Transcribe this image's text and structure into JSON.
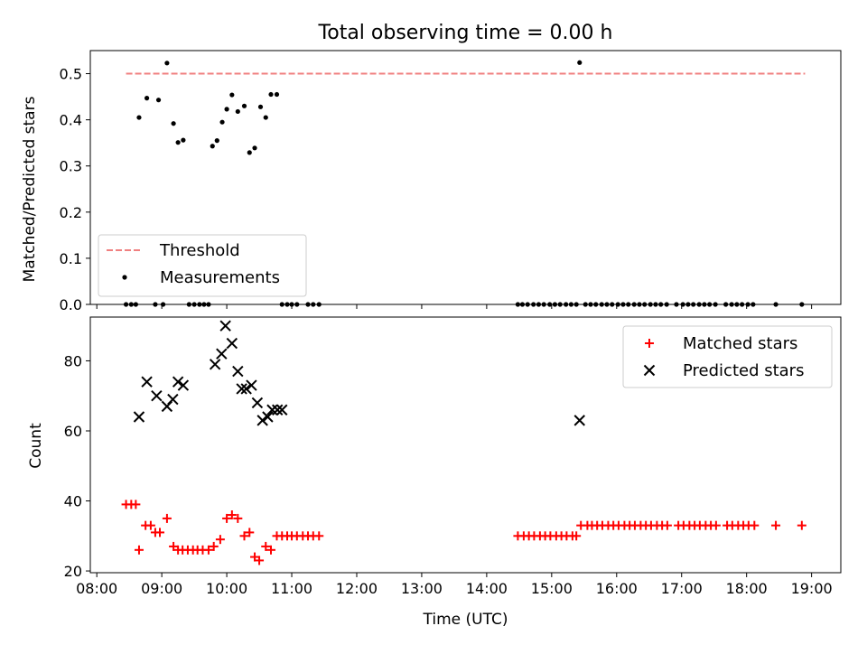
{
  "chart_data": [
    {
      "type": "scatter",
      "title": "Total observing time = 0.00 h",
      "xlabel": "",
      "ylabel": "Matched/Predicted stars",
      "xlim_hours": [
        7.9,
        19.45
      ],
      "ylim": [
        0,
        0.55
      ],
      "yticks": [
        0.0,
        0.1,
        0.2,
        0.3,
        0.4,
        0.5
      ],
      "ytick_labels": [
        "0.0",
        "0.1",
        "0.2",
        "0.3",
        "0.4",
        "0.5"
      ],
      "threshold": {
        "name": "Threshold",
        "value": 0.5,
        "x_range": [
          8.45,
          18.9
        ],
        "color": "#f08080"
      },
      "legend": {
        "position": "lower-left",
        "entries": [
          "Threshold",
          "Measurements"
        ]
      },
      "series": [
        {
          "name": "Measurements",
          "color": "#000000",
          "x": [
            8.45,
            8.53,
            8.6,
            8.65,
            8.77,
            8.9,
            8.95,
            9.02,
            9.08,
            9.18,
            9.25,
            9.33,
            9.42,
            9.5,
            9.58,
            9.65,
            9.72,
            9.78,
            9.85,
            9.93,
            10.0,
            10.08,
            10.17,
            10.27,
            10.35,
            10.43,
            10.52,
            10.6,
            10.68,
            10.77,
            10.85,
            10.93,
            11.0,
            11.08,
            11.25,
            11.33,
            11.42,
            14.48,
            14.55,
            14.63,
            14.72,
            14.8,
            14.88,
            14.97,
            15.05,
            15.13,
            15.22,
            15.3,
            15.38,
            15.43,
            15.52,
            15.6,
            15.68,
            15.77,
            15.85,
            15.93,
            16.02,
            16.1,
            16.18,
            16.27,
            16.35,
            16.43,
            16.52,
            16.6,
            16.68,
            16.77,
            16.92,
            17.02,
            17.1,
            17.18,
            17.27,
            17.35,
            17.43,
            17.52,
            17.68,
            17.77,
            17.85,
            17.93,
            18.02,
            18.1,
            18.45,
            18.85
          ],
          "y": [
            0,
            0,
            0,
            0.405,
            0.447,
            0,
            0.443,
            0,
            0.523,
            0.392,
            0.351,
            0.356,
            0,
            0,
            0,
            0,
            0,
            0.343,
            0.355,
            0.395,
            0.423,
            0.454,
            0.418,
            0.43,
            0.329,
            0.339,
            0.428,
            0.405,
            0.455,
            0.455,
            0,
            0,
            0,
            0,
            0,
            0,
            0,
            0,
            0,
            0,
            0,
            0,
            0,
            0,
            0,
            0,
            0,
            0,
            0,
            0.524,
            0,
            0,
            0,
            0,
            0,
            0,
            0,
            0,
            0,
            0,
            0,
            0,
            0,
            0,
            0,
            0,
            0,
            0,
            0,
            0,
            0,
            0,
            0,
            0,
            0,
            0,
            0,
            0,
            0,
            0,
            0,
            0
          ]
        }
      ]
    },
    {
      "type": "scatter",
      "title": "",
      "xlabel": "Time (UTC)",
      "ylabel": "Count",
      "xlim_hours": [
        7.9,
        19.45
      ],
      "ylim": [
        19.5,
        92.5
      ],
      "yticks": [
        20,
        40,
        60,
        80
      ],
      "ytick_labels": [
        "20",
        "40",
        "60",
        "80"
      ],
      "xticks_hours": [
        8,
        9,
        10,
        11,
        12,
        13,
        14,
        15,
        16,
        17,
        18,
        19
      ],
      "xtick_labels": [
        "08:00",
        "09:00",
        "10:00",
        "11:00",
        "12:00",
        "13:00",
        "14:00",
        "15:00",
        "16:00",
        "17:00",
        "18:00",
        "19:00"
      ],
      "legend": {
        "position": "top-right",
        "entries": [
          "Matched stars",
          "Predicted stars"
        ]
      },
      "series": [
        {
          "name": "Matched stars",
          "marker": "plus",
          "color": "#ff0000",
          "x": [
            8.45,
            8.53,
            8.6,
            8.65,
            8.75,
            8.83,
            8.9,
            8.97,
            9.08,
            9.18,
            9.25,
            9.32,
            9.4,
            9.48,
            9.55,
            9.63,
            9.72,
            9.8,
            9.9,
            10.0,
            10.08,
            10.17,
            10.27,
            10.35,
            10.43,
            10.5,
            10.6,
            10.68,
            10.77,
            10.85,
            10.93,
            11.0,
            11.08,
            11.17,
            11.25,
            11.33,
            11.42,
            14.48,
            14.57,
            14.65,
            14.73,
            14.82,
            14.9,
            14.98,
            15.07,
            15.15,
            15.23,
            15.32,
            15.38,
            15.45,
            15.55,
            15.62,
            15.7,
            15.78,
            15.87,
            15.95,
            16.03,
            16.12,
            16.2,
            16.28,
            16.37,
            16.45,
            16.53,
            16.62,
            16.7,
            16.78,
            16.95,
            17.03,
            17.12,
            17.2,
            17.28,
            17.37,
            17.45,
            17.53,
            17.7,
            17.78,
            17.87,
            17.95,
            18.03,
            18.12,
            18.45,
            18.85
          ],
          "y": [
            39,
            39,
            39,
            26,
            33,
            33,
            31,
            31,
            35,
            27,
            26,
            26,
            26,
            26,
            26,
            26,
            26,
            27,
            29,
            35,
            36,
            35,
            30,
            31,
            24,
            23,
            27,
            26,
            30,
            30,
            30,
            30,
            30,
            30,
            30,
            30,
            30,
            30,
            30,
            30,
            30,
            30,
            30,
            30,
            30,
            30,
            30,
            30,
            30,
            33,
            33,
            33,
            33,
            33,
            33,
            33,
            33,
            33,
            33,
            33,
            33,
            33,
            33,
            33,
            33,
            33,
            33,
            33,
            33,
            33,
            33,
            33,
            33,
            33,
            33,
            33,
            33,
            33,
            33,
            33,
            33,
            33
          ]
        },
        {
          "name": "Predicted stars",
          "marker": "x",
          "color": "#000000",
          "x": [
            8.65,
            8.77,
            8.92,
            9.08,
            9.17,
            9.25,
            9.33,
            9.82,
            9.92,
            9.98,
            10.08,
            10.17,
            10.23,
            10.3,
            10.38,
            10.47,
            10.55,
            10.63,
            10.7,
            10.78,
            10.85,
            15.43
          ],
          "y": [
            64,
            74,
            70,
            67,
            69,
            74,
            73,
            79,
            82,
            90,
            85,
            77,
            72,
            72,
            73,
            68,
            63,
            64,
            66,
            66,
            66,
            63
          ]
        }
      ]
    }
  ]
}
